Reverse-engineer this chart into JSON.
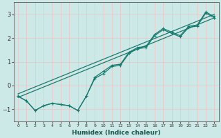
{
  "title": "",
  "xlabel": "Humidex (Indice chaleur)",
  "ylabel": "",
  "bg_color": "#cce9e7",
  "line_color": "#1a7a6e",
  "grid_color": "#e8c8c8",
  "xlim": [
    -0.5,
    23.5
  ],
  "ylim": [
    -1.5,
    3.5
  ],
  "xticks": [
    0,
    1,
    2,
    3,
    4,
    5,
    6,
    7,
    8,
    9,
    10,
    11,
    12,
    13,
    14,
    15,
    16,
    17,
    18,
    19,
    20,
    21,
    22,
    23
  ],
  "yticks": [
    -1,
    0,
    1,
    2,
    3
  ],
  "straight1": {
    "x": [
      0,
      23
    ],
    "y": [
      -0.5,
      2.85
    ]
  },
  "straight2": {
    "x": [
      0,
      23
    ],
    "y": [
      -0.35,
      3.0
    ]
  },
  "zigzag1_x": [
    0,
    1,
    2,
    3,
    4,
    5,
    6,
    7,
    8,
    9,
    10,
    11,
    12,
    13,
    14,
    15,
    16,
    17,
    18,
    19,
    20,
    21,
    22,
    23
  ],
  "zigzag1_y": [
    -0.45,
    -0.65,
    -1.05,
    -0.85,
    -0.75,
    -0.8,
    -0.85,
    -1.05,
    -0.45,
    0.35,
    0.6,
    0.85,
    0.9,
    1.4,
    1.6,
    1.65,
    2.15,
    2.4,
    2.25,
    2.1,
    2.5,
    2.55,
    3.1,
    2.9
  ],
  "zigzag2_x": [
    0,
    1,
    2,
    3,
    4,
    5,
    6,
    7,
    8,
    9,
    10,
    11,
    12,
    13,
    14,
    15,
    16,
    17,
    18,
    19,
    20,
    21,
    22,
    23
  ],
  "zigzag2_y": [
    -0.45,
    -0.65,
    -1.05,
    -0.85,
    -0.75,
    -0.8,
    -0.85,
    -1.05,
    -0.45,
    0.3,
    0.5,
    0.8,
    0.85,
    1.35,
    1.55,
    1.6,
    2.1,
    2.35,
    2.2,
    2.05,
    2.45,
    2.5,
    3.05,
    2.85
  ]
}
